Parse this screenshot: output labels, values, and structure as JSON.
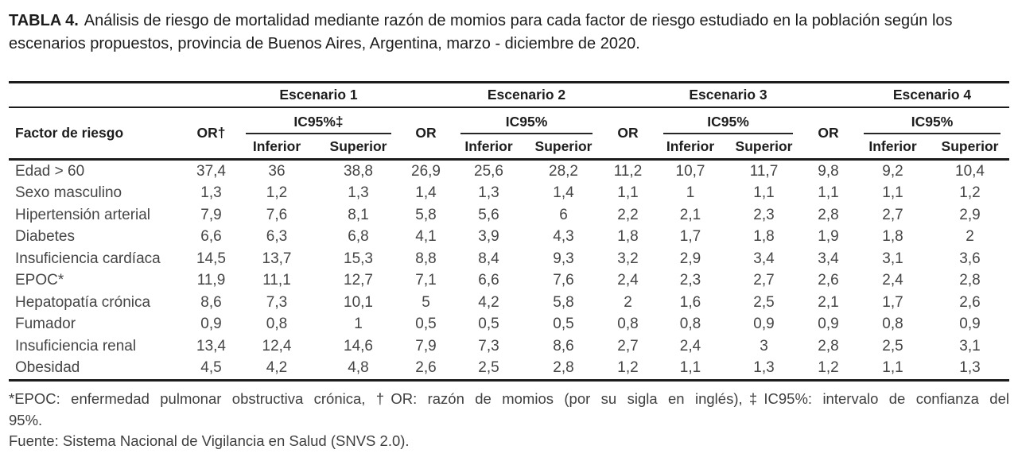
{
  "title": {
    "label": "TABLA 4.",
    "text": "Análisis de riesgo de mortalidad mediante razón de momios para cada factor de riesgo estudiado en la población según los escenarios propuestos, provincia de Buenos Aires, Argentina, marzo - diciembre de 2020."
  },
  "table": {
    "factor_header": "Factor de riesgo",
    "scenario_headers": [
      "Escenario 1",
      "Escenario 2",
      "Escenario 3",
      "Escenario 4"
    ],
    "or_headers": [
      "OR†",
      "OR",
      "OR",
      "OR"
    ],
    "ci_headers": [
      "IC95%‡",
      "IC95%",
      "IC95%",
      "IC95%"
    ],
    "ci_sub_headers": [
      "Inferior",
      "Superior"
    ],
    "rows": [
      {
        "factor": "Edad > 60",
        "values": [
          "37,4",
          "36",
          "38,8",
          "26,9",
          "25,6",
          "28,2",
          "11,2",
          "10,7",
          "11,7",
          "9,8",
          "9,2",
          "10,4"
        ]
      },
      {
        "factor": "Sexo masculino",
        "values": [
          "1,3",
          "1,2",
          "1,3",
          "1,4",
          "1,3",
          "1,4",
          "1,1",
          "1",
          "1,1",
          "1,1",
          "1,1",
          "1,2"
        ]
      },
      {
        "factor": "Hipertensión arterial",
        "values": [
          "7,9",
          "7,6",
          "8,1",
          "5,8",
          "5,6",
          "6",
          "2,2",
          "2,1",
          "2,3",
          "2,8",
          "2,7",
          "2,9"
        ]
      },
      {
        "factor": "Diabetes",
        "values": [
          "6,6",
          "6,3",
          "6,8",
          "4,1",
          "3,9",
          "4,3",
          "1,8",
          "1,7",
          "1,8",
          "1,9",
          "1,8",
          "2"
        ]
      },
      {
        "factor": "Insuficiencia cardíaca",
        "values": [
          "14,5",
          "13,7",
          "15,3",
          "8,8",
          "8,4",
          "9,3",
          "3,2",
          "2,9",
          "3,4",
          "3,4",
          "3,1",
          "3,6"
        ]
      },
      {
        "factor": "EPOC*",
        "values": [
          "11,9",
          "11,1",
          "12,7",
          "7,1",
          "6,6",
          "7,6",
          "2,4",
          "2,3",
          "2,7",
          "2,6",
          "2,4",
          "2,8"
        ]
      },
      {
        "factor": "Hepatopatía crónica",
        "values": [
          "8,6",
          "7,3",
          "10,1",
          "5",
          "4,2",
          "5,8",
          "2",
          "1,6",
          "2,5",
          "2,1",
          "1,7",
          "2,6"
        ]
      },
      {
        "factor": "Fumador",
        "values": [
          "0,9",
          "0,8",
          "1",
          "0,5",
          "0,5",
          "0,5",
          "0,8",
          "0,8",
          "0,9",
          "0,9",
          "0,8",
          "0,9"
        ]
      },
      {
        "factor": "Insuficiencia renal",
        "values": [
          "13,4",
          "12,4",
          "14,6",
          "7,9",
          "7,3",
          "8,6",
          "2,7",
          "2,4",
          "3",
          "2,8",
          "2,5",
          "3,1"
        ]
      },
      {
        "factor": "Obesidad",
        "values": [
          "4,5",
          "4,2",
          "4,8",
          "2,6",
          "2,5",
          "2,8",
          "1,2",
          "1,1",
          "1,3",
          "1,2",
          "1,1",
          "1,3"
        ]
      }
    ]
  },
  "footnotes": {
    "abbr_line1": "*EPOC: enfermedad pulmonar obstructiva crónica, †OR: razón de momios (por su sigla en inglés),‡IC95%: intervalo de confianza del",
    "abbr_line2": "95%.",
    "source": "Fuente: Sistema Nacional de Vigilancia en Salud (SNVS 2.0)."
  },
  "colors": {
    "rule": "#1c1c1c",
    "heading_text": "#1d1d1d",
    "body_text": "#454545"
  }
}
